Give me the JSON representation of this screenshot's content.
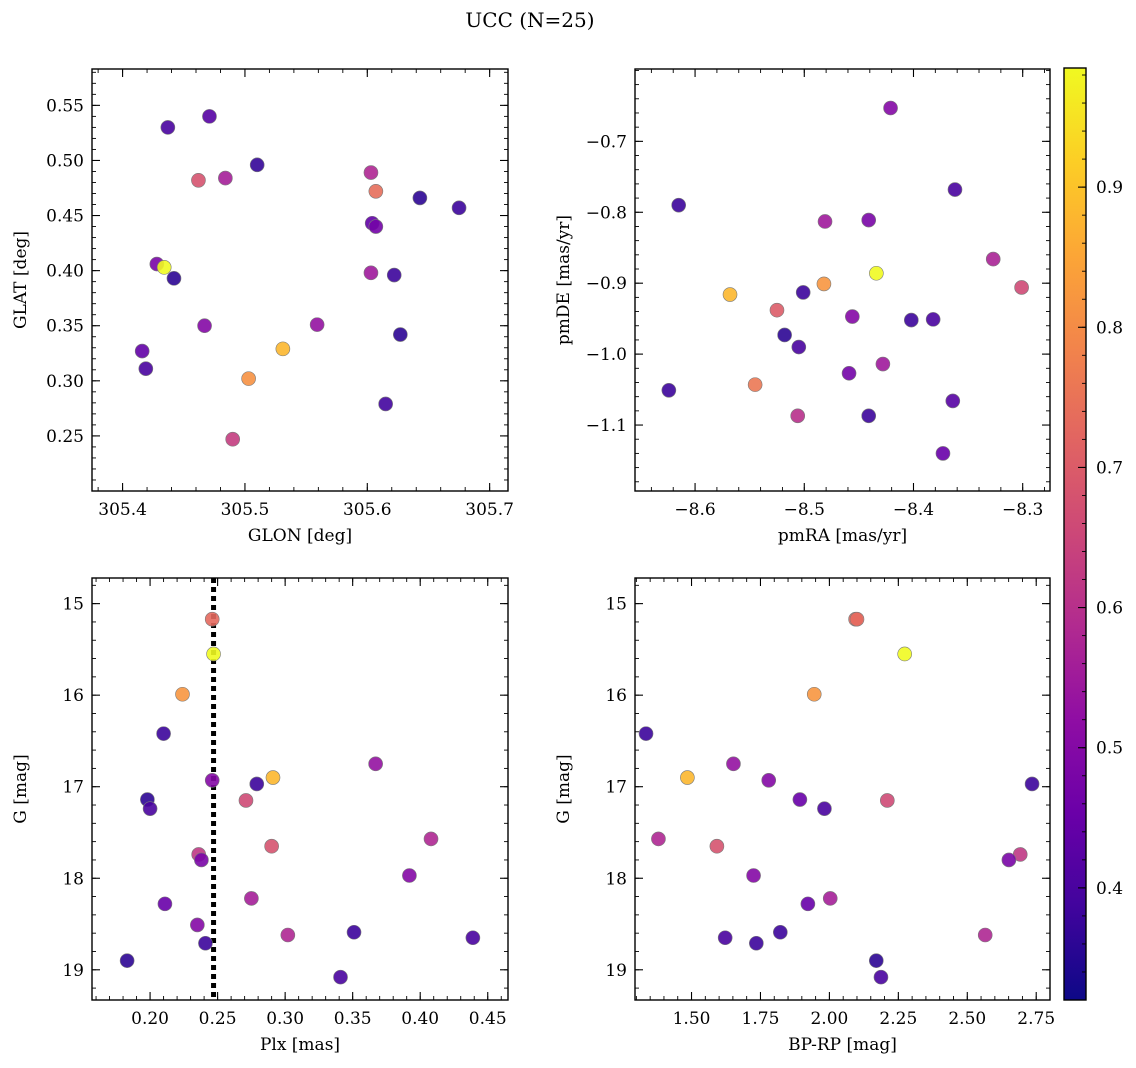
{
  "figure": {
    "title": "UCC (N=25)",
    "colormap": "plasma",
    "colorbar": {
      "range": [
        0.32,
        0.985
      ],
      "ticks": [
        0.4,
        0.5,
        0.6,
        0.7,
        0.8,
        0.9
      ]
    }
  },
  "chart_data": [
    {
      "type": "scatter",
      "xlabel": "GLON [deg]",
      "ylabel": "GLAT [deg]",
      "xlim": [
        305.375,
        305.715
      ],
      "ylim": [
        0.2,
        0.583
      ],
      "xticks": [
        305.4,
        305.5,
        305.6,
        305.7
      ],
      "xticklabels": [
        "305.4",
        "305.5",
        "305.6",
        "305.7"
      ],
      "yticks": [
        0.25,
        0.3,
        0.35,
        0.4,
        0.45,
        0.5,
        0.55
      ],
      "yticklabels": [
        "0.25",
        "0.30",
        "0.35",
        "0.40",
        "0.45",
        "0.50",
        "0.55"
      ],
      "points": [
        {
          "x": 305.437,
          "y": 0.53,
          "c": 0.4
        },
        {
          "x": 305.471,
          "y": 0.54,
          "c": 0.42
        },
        {
          "x": 305.51,
          "y": 0.496,
          "c": 0.37
        },
        {
          "x": 305.462,
          "y": 0.482,
          "c": 0.68
        },
        {
          "x": 305.484,
          "y": 0.484,
          "c": 0.56
        },
        {
          "x": 305.603,
          "y": 0.489,
          "c": 0.58
        },
        {
          "x": 305.607,
          "y": 0.472,
          "c": 0.74
        },
        {
          "x": 305.643,
          "y": 0.466,
          "c": 0.36
        },
        {
          "x": 305.675,
          "y": 0.457,
          "c": 0.38
        },
        {
          "x": 305.604,
          "y": 0.443,
          "c": 0.44
        },
        {
          "x": 305.607,
          "y": 0.44,
          "c": 0.47
        },
        {
          "x": 305.428,
          "y": 0.406,
          "c": 0.48
        },
        {
          "x": 305.434,
          "y": 0.403,
          "c": 0.985
        },
        {
          "x": 305.442,
          "y": 0.393,
          "c": 0.36
        },
        {
          "x": 305.603,
          "y": 0.398,
          "c": 0.55
        },
        {
          "x": 305.622,
          "y": 0.396,
          "c": 0.38
        },
        {
          "x": 305.467,
          "y": 0.35,
          "c": 0.5
        },
        {
          "x": 305.559,
          "y": 0.351,
          "c": 0.53
        },
        {
          "x": 305.627,
          "y": 0.342,
          "c": 0.36
        },
        {
          "x": 305.531,
          "y": 0.329,
          "c": 0.88
        },
        {
          "x": 305.416,
          "y": 0.327,
          "c": 0.44
        },
        {
          "x": 305.419,
          "y": 0.311,
          "c": 0.4
        },
        {
          "x": 305.503,
          "y": 0.302,
          "c": 0.81
        },
        {
          "x": 305.615,
          "y": 0.279,
          "c": 0.39
        },
        {
          "x": 305.49,
          "y": 0.247,
          "c": 0.63
        }
      ]
    },
    {
      "type": "scatter",
      "xlabel": "pmRA [mas/yr]",
      "ylabel": "pmDE [mas/yr]",
      "xlim": [
        -8.655,
        -8.275
      ],
      "ylim": [
        -1.193,
        -0.598
      ],
      "xticks": [
        -8.6,
        -8.5,
        -8.4,
        -8.3
      ],
      "xticklabels": [
        "−8.6",
        "−8.5",
        "−8.4",
        "−8.3"
      ],
      "yticks": [
        -1.1,
        -1.0,
        -0.9,
        -0.8,
        -0.7
      ],
      "yticklabels": [
        "−1.1",
        "−1.0",
        "−0.9",
        "−0.8",
        "−0.7"
      ],
      "points": [
        {
          "x": -8.421,
          "y": -0.653,
          "c": 0.5
        },
        {
          "x": -8.362,
          "y": -0.768,
          "c": 0.4
        },
        {
          "x": -8.615,
          "y": -0.79,
          "c": 0.38
        },
        {
          "x": -8.481,
          "y": -0.813,
          "c": 0.55
        },
        {
          "x": -8.441,
          "y": -0.811,
          "c": 0.48
        },
        {
          "x": -8.327,
          "y": -0.866,
          "c": 0.57
        },
        {
          "x": -8.434,
          "y": -0.886,
          "c": 0.985
        },
        {
          "x": -8.482,
          "y": -0.901,
          "c": 0.82
        },
        {
          "x": -8.301,
          "y": -0.906,
          "c": 0.66
        },
        {
          "x": -8.568,
          "y": -0.916,
          "c": 0.88
        },
        {
          "x": -8.501,
          "y": -0.913,
          "c": 0.38
        },
        {
          "x": -8.525,
          "y": -0.938,
          "c": 0.7
        },
        {
          "x": -8.456,
          "y": -0.947,
          "c": 0.5
        },
        {
          "x": -8.402,
          "y": -0.952,
          "c": 0.38
        },
        {
          "x": -8.382,
          "y": -0.951,
          "c": 0.4
        },
        {
          "x": -8.518,
          "y": -0.973,
          "c": 0.36
        },
        {
          "x": -8.505,
          "y": -0.99,
          "c": 0.4
        },
        {
          "x": -8.428,
          "y": -1.014,
          "c": 0.55
        },
        {
          "x": -8.459,
          "y": -1.027,
          "c": 0.47
        },
        {
          "x": -8.545,
          "y": -1.043,
          "c": 0.76
        },
        {
          "x": -8.624,
          "y": -1.051,
          "c": 0.38
        },
        {
          "x": -8.364,
          "y": -1.066,
          "c": 0.42
        },
        {
          "x": -8.506,
          "y": -1.087,
          "c": 0.6
        },
        {
          "x": -8.441,
          "y": -1.087,
          "c": 0.38
        },
        {
          "x": -8.373,
          "y": -1.14,
          "c": 0.45
        }
      ]
    },
    {
      "type": "scatter",
      "xlabel": "Plx [mas]",
      "ylabel": "G [mag]",
      "xlim": [
        0.157,
        0.465
      ],
      "ylim": [
        19.33,
        14.72
      ],
      "y_inverted": true,
      "vline": {
        "x": 0.247,
        "style": "dotted",
        "color": "#000000"
      },
      "xticks": [
        0.2,
        0.25,
        0.3,
        0.35,
        0.4,
        0.45
      ],
      "xticklabels": [
        "0.20",
        "0.25",
        "0.30",
        "0.35",
        "0.40",
        "0.45"
      ],
      "yticks": [
        15,
        16,
        17,
        18,
        19
      ],
      "yticklabels": [
        "15",
        "16",
        "17",
        "18",
        "19"
      ],
      "points": [
        {
          "x": 0.246,
          "y": 15.17,
          "c": 0.73
        },
        {
          "x": 0.247,
          "y": 15.55,
          "c": 0.985
        },
        {
          "x": 0.224,
          "y": 15.99,
          "c": 0.82
        },
        {
          "x": 0.21,
          "y": 16.42,
          "c": 0.38
        },
        {
          "x": 0.367,
          "y": 16.75,
          "c": 0.53
        },
        {
          "x": 0.291,
          "y": 16.9,
          "c": 0.88
        },
        {
          "x": 0.246,
          "y": 16.93,
          "c": 0.5
        },
        {
          "x": 0.279,
          "y": 16.97,
          "c": 0.38
        },
        {
          "x": 0.198,
          "y": 17.14,
          "c": 0.36
        },
        {
          "x": 0.271,
          "y": 17.15,
          "c": 0.66
        },
        {
          "x": 0.2,
          "y": 17.24,
          "c": 0.4
        },
        {
          "x": 0.408,
          "y": 17.57,
          "c": 0.58
        },
        {
          "x": 0.29,
          "y": 17.65,
          "c": 0.68
        },
        {
          "x": 0.236,
          "y": 17.74,
          "c": 0.62
        },
        {
          "x": 0.238,
          "y": 17.8,
          "c": 0.48
        },
        {
          "x": 0.392,
          "y": 17.97,
          "c": 0.5
        },
        {
          "x": 0.275,
          "y": 18.22,
          "c": 0.56
        },
        {
          "x": 0.211,
          "y": 18.28,
          "c": 0.45
        },
        {
          "x": 0.235,
          "y": 18.51,
          "c": 0.5
        },
        {
          "x": 0.351,
          "y": 18.59,
          "c": 0.38
        },
        {
          "x": 0.302,
          "y": 18.62,
          "c": 0.58
        },
        {
          "x": 0.439,
          "y": 18.65,
          "c": 0.4
        },
        {
          "x": 0.241,
          "y": 18.71,
          "c": 0.38
        },
        {
          "x": 0.183,
          "y": 18.9,
          "c": 0.36
        },
        {
          "x": 0.341,
          "y": 19.08,
          "c": 0.4
        }
      ]
    },
    {
      "type": "scatter",
      "xlabel": "BP-RP [mag]",
      "ylabel": "G [mag]",
      "xlim": [
        1.295,
        2.8
      ],
      "ylim": [
        19.33,
        14.72
      ],
      "y_inverted": true,
      "xticks": [
        1.5,
        1.75,
        2.0,
        2.25,
        2.5,
        2.75
      ],
      "xticklabels": [
        "1.50",
        "1.75",
        "2.00",
        "2.25",
        "2.50",
        "2.75"
      ],
      "yticks": [
        15,
        16,
        17,
        18,
        19
      ],
      "yticklabels": [
        "15",
        "16",
        "17",
        "18",
        "19"
      ],
      "points": [
        {
          "x": 2.095,
          "y": 15.17,
          "c": 0.73
        },
        {
          "x": 2.273,
          "y": 15.55,
          "c": 0.985
        },
        {
          "x": 1.945,
          "y": 15.99,
          "c": 0.82
        },
        {
          "x": 1.335,
          "y": 16.42,
          "c": 0.38
        },
        {
          "x": 1.652,
          "y": 16.75,
          "c": 0.53
        },
        {
          "x": 1.485,
          "y": 16.9,
          "c": 0.88
        },
        {
          "x": 1.78,
          "y": 16.93,
          "c": 0.5
        },
        {
          "x": 2.735,
          "y": 16.97,
          "c": 0.38
        },
        {
          "x": 1.893,
          "y": 17.14,
          "c": 0.45
        },
        {
          "x": 2.21,
          "y": 17.15,
          "c": 0.66
        },
        {
          "x": 1.982,
          "y": 17.24,
          "c": 0.4
        },
        {
          "x": 1.38,
          "y": 17.57,
          "c": 0.58
        },
        {
          "x": 1.592,
          "y": 17.65,
          "c": 0.68
        },
        {
          "x": 2.692,
          "y": 17.74,
          "c": 0.62
        },
        {
          "x": 2.651,
          "y": 17.8,
          "c": 0.48
        },
        {
          "x": 1.725,
          "y": 17.97,
          "c": 0.5
        },
        {
          "x": 2.003,
          "y": 18.22,
          "c": 0.56
        },
        {
          "x": 1.922,
          "y": 18.28,
          "c": 0.45
        },
        {
          "x": 2.565,
          "y": 18.62,
          "c": 0.58
        },
        {
          "x": 1.822,
          "y": 18.59,
          "c": 0.38
        },
        {
          "x": 1.622,
          "y": 18.65,
          "c": 0.4
        },
        {
          "x": 1.735,
          "y": 18.71,
          "c": 0.38
        },
        {
          "x": 2.17,
          "y": 18.9,
          "c": 0.36
        },
        {
          "x": 2.187,
          "y": 19.08,
          "c": 0.4
        },
        {
          "x": 2.1,
          "y": 15.17,
          "c": 0.73
        }
      ]
    }
  ]
}
